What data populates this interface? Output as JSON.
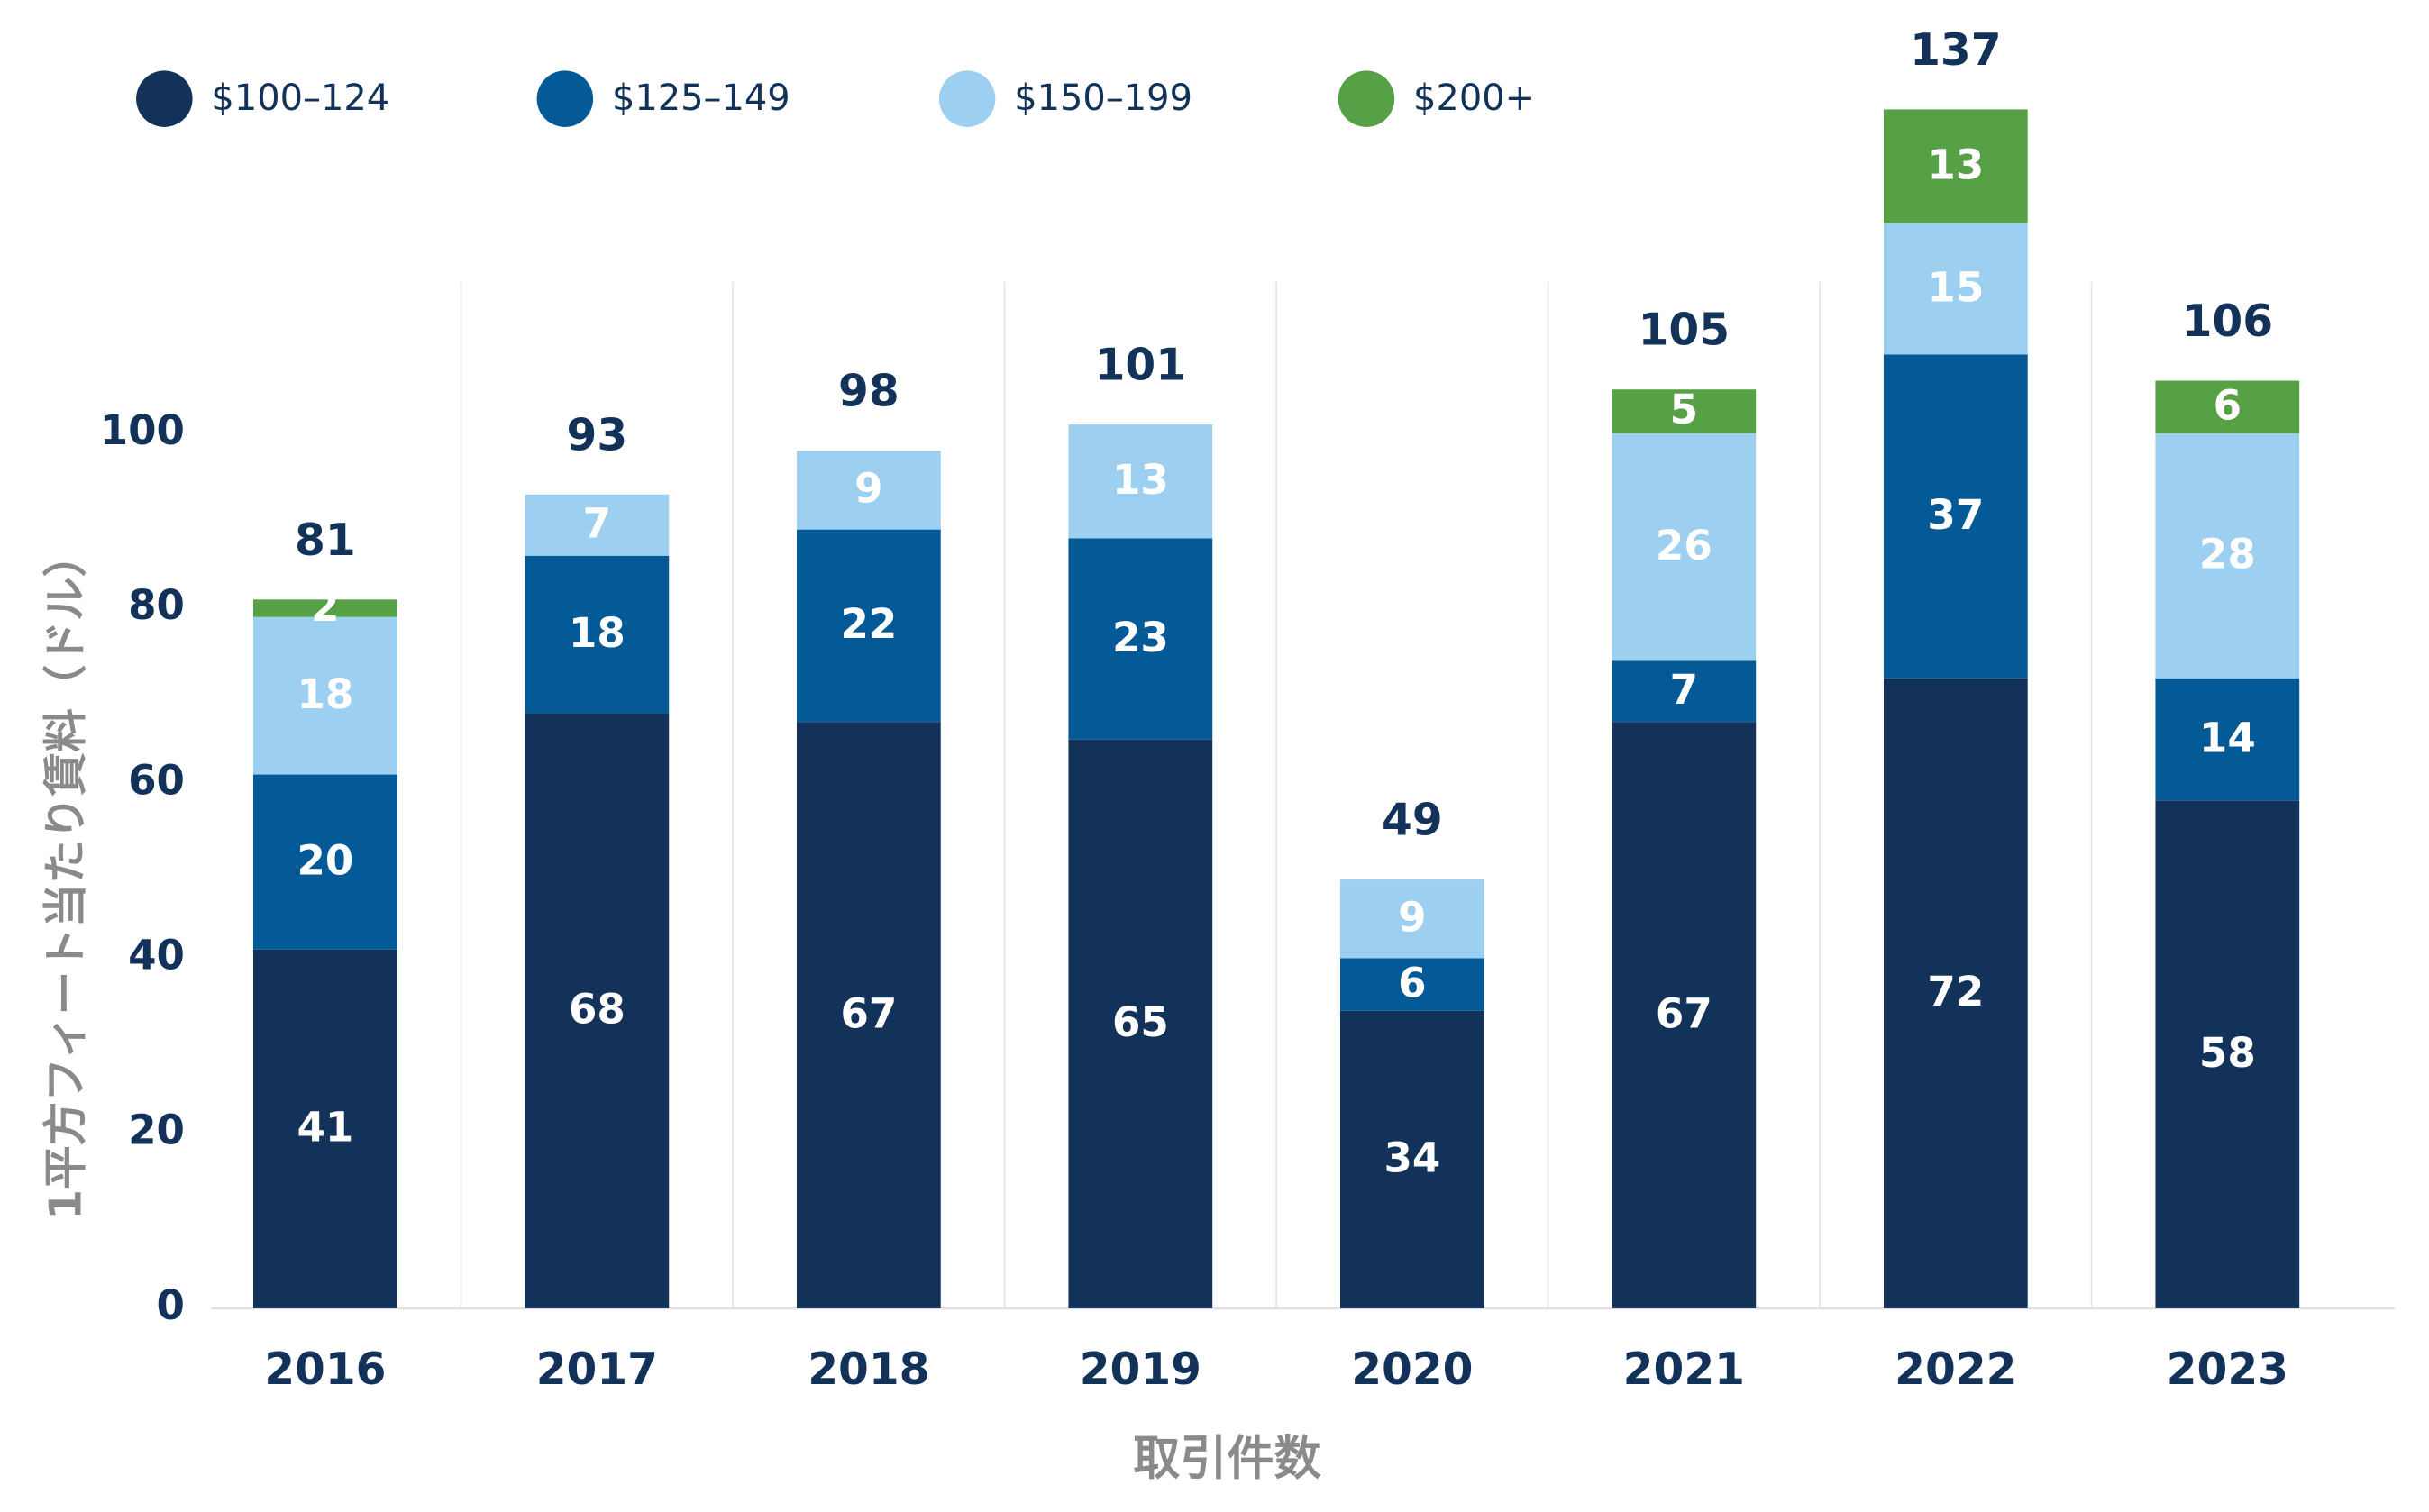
{
  "chart_data": {
    "type": "stacked-bar",
    "y_label": "1平方フィート当たり賃料（ドル）",
    "x_label": "取引件数",
    "categories": [
      "2016",
      "2017",
      "2018",
      "2019",
      "2020",
      "2021",
      "2022",
      "2023"
    ],
    "series": [
      {
        "name": "$100–124",
        "color": "#12325a",
        "values": [
          41,
          68,
          67,
          65,
          34,
          67,
          72,
          58
        ]
      },
      {
        "name": "$125–149",
        "color": "#035a96",
        "values": [
          20,
          18,
          22,
          23,
          6,
          7,
          37,
          14
        ]
      },
      {
        "name": "$150–199",
        "color": "#9dd0f0",
        "values": [
          18,
          7,
          9,
          13,
          9,
          26,
          15,
          28
        ]
      },
      {
        "name": "$200+",
        "color": "#56a046",
        "values": [
          2,
          null,
          null,
          null,
          null,
          5,
          13,
          6
        ]
      }
    ],
    "totals": [
      81,
      93,
      98,
      101,
      49,
      105,
      137,
      106
    ],
    "ylim": [
      0,
      140
    ],
    "yticks": [
      0,
      20,
      40,
      60,
      80,
      100
    ],
    "legend": "top-left"
  }
}
